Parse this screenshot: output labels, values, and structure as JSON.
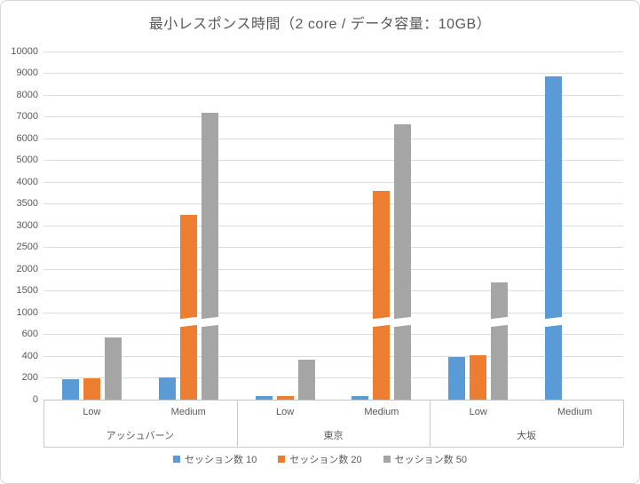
{
  "chart_data": {
    "type": "bar",
    "title": "最小レスポンス時間（2 core / データ容量：10GB）",
    "y_axis": {
      "tick_values": [
        0,
        200,
        400,
        600,
        1000,
        1500,
        2000,
        2500,
        3000,
        3500,
        4000,
        5000,
        6000,
        7000,
        8000,
        9000,
        10000
      ],
      "scale": "piecewise-nonlinear-equal-tick-spacing",
      "break_between": [
        600,
        1000
      ],
      "ylim": [
        0,
        10000
      ]
    },
    "groups": [
      {
        "label": "アッシュバーン",
        "categories": [
          "Low",
          "Medium"
        ]
      },
      {
        "label": "東京",
        "categories": [
          "Low",
          "Medium"
        ]
      },
      {
        "label": "大坂",
        "categories": [
          "Low",
          "Medium"
        ]
      }
    ],
    "category_order": [
      "アッシュバーン Low",
      "アッシュバーン Medium",
      "東京 Low",
      "東京 Medium",
      "大坂 Low",
      "大坂 Medium"
    ],
    "series": [
      {
        "name": "セッション数 10",
        "color": "#5B9BD5",
        "values": [
          190,
          205,
          30,
          35,
          390,
          8870
        ]
      },
      {
        "name": "セッション数 20",
        "color": "#ED7D31",
        "values": [
          200,
          3250,
          30,
          3800,
          410,
          null
        ]
      },
      {
        "name": "セッション数 50",
        "color": "#A5A5A5",
        "values": [
          570,
          7180,
          370,
          6650,
          1700,
          null
        ]
      }
    ],
    "legend_position": "bottom",
    "grid": true,
    "colors": {
      "gridline": "#DCDCDC",
      "text": "#595959",
      "background": "#FFFFFF",
      "border": "#D6D6D6"
    }
  }
}
